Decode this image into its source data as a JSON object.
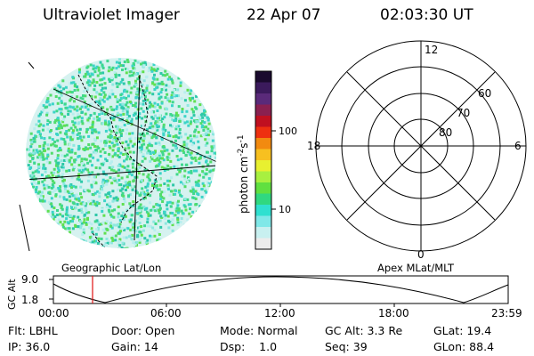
{
  "header": {
    "instrument": "Ultraviolet Imager",
    "date": "22 Apr 07",
    "time": "02:03:30 UT"
  },
  "colorbar": {
    "label": "photon cm",
    "label_exp1": "-2",
    "label_mid": "s",
    "label_exp2": "-1",
    "ticks": [
      "100",
      "10"
    ],
    "colors": [
      "#1a0a2e",
      "#3b1a5c",
      "#5a2a7a",
      "#8a2050",
      "#c01020",
      "#ee3010",
      "#f28a10",
      "#f7c020",
      "#e8f030",
      "#a8f040",
      "#60e040",
      "#30d880",
      "#30e0d0",
      "#80e8e8",
      "#c8f0f0",
      "#ececec"
    ]
  },
  "polar_plot": {
    "top_label": "12",
    "bottom_label": "0",
    "left_label": "18",
    "right_label": "6",
    "ring_labels": [
      "60",
      "70",
      "80"
    ]
  },
  "map_labels": {
    "left": "Geographic Lat/Lon",
    "right": "Apex MLat/MLT"
  },
  "altitude_plot": {
    "axis_label": "GC Alt",
    "y_ticks": [
      "9.0",
      "1.8"
    ],
    "x_ticks": [
      "00:00",
      "06:00",
      "12:00",
      "18:00",
      "23:59"
    ]
  },
  "info": {
    "filter": "Flt: LBHL",
    "door": "Door: Open",
    "mode": "Mode: Normal",
    "gc_alt": "GC Alt: 3.3 Re",
    "glat": "GLat: 19.4",
    "ip": "IP: 36.0",
    "gain": "Gain: 14",
    "dsp": "Dsp:    1.0",
    "seq": "Seq: 39",
    "glon": "GLon: 88.4"
  }
}
